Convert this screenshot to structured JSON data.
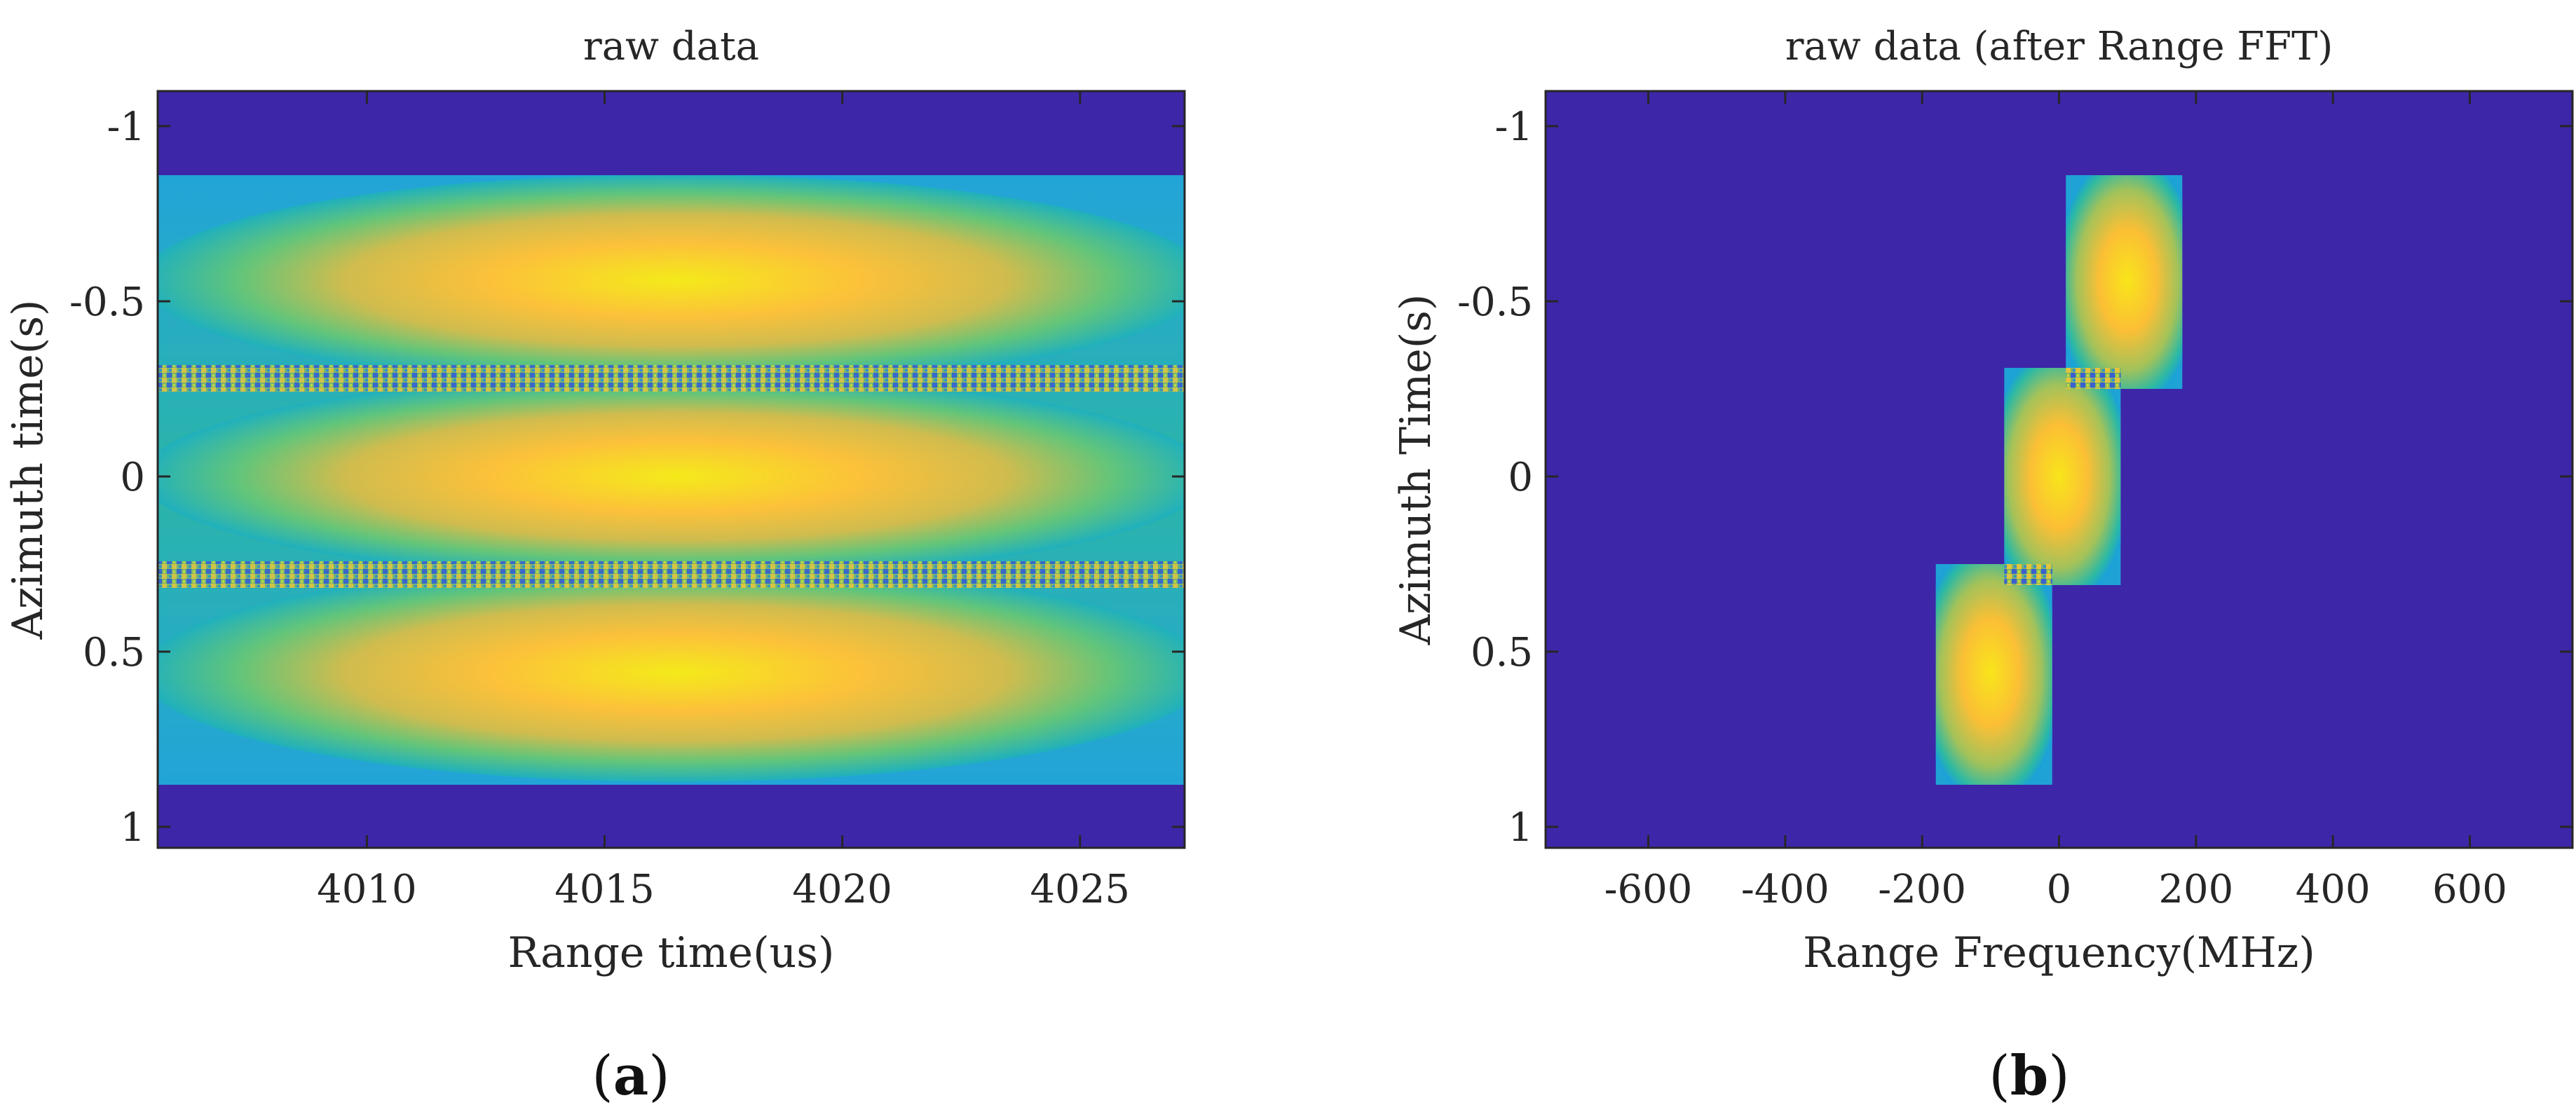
{
  "chart_data": [
    {
      "type": "heatmap",
      "panel": "a",
      "title": "raw data",
      "xlabel": "Range time(us)",
      "ylabel": "Azimuth time(s)",
      "xlim": [
        4005.6,
        4027.2
      ],
      "ylim": [
        1.06,
        -1.1
      ],
      "x_ticks": [
        4010,
        4015,
        4020,
        4025
      ],
      "y_ticks": [
        -1,
        -0.5,
        0,
        0.5,
        1
      ],
      "y_tick_labels": [
        "-1",
        "-0.5",
        "0",
        "0.5",
        "1"
      ],
      "grid": false,
      "colormap": "parula",
      "background_color": "#3e26a8",
      "signal_extent_x": [
        4005.6,
        4027.2
      ],
      "signal_extent_y": [
        -0.86,
        0.88
      ],
      "bands": [
        {
          "center_y": -0.56,
          "y_range": [
            -0.86,
            -0.28
          ],
          "peak_x": 4016.5
        },
        {
          "center_y": 0.0,
          "y_range": [
            -0.28,
            0.28
          ],
          "peak_x": 4016.5
        },
        {
          "center_y": 0.56,
          "y_range": [
            0.28,
            0.88
          ],
          "peak_x": 4016.5
        }
      ],
      "aliasing_rows_y": [
        -0.28,
        0.28
      ]
    },
    {
      "type": "heatmap",
      "panel": "b",
      "title": "raw data (after Range FFT)",
      "xlabel": "Range Frequency(MHz)",
      "ylabel": "Azimuth Time(s)",
      "xlim": [
        -750,
        750
      ],
      "ylim": [
        1.06,
        -1.1
      ],
      "x_ticks": [
        -600,
        -400,
        -200,
        0,
        200,
        400,
        600
      ],
      "x_tick_labels": [
        "-600",
        "-400",
        "-200",
        "0",
        "200",
        "400",
        "600"
      ],
      "y_ticks": [
        -1,
        -0.5,
        0,
        0.5,
        1
      ],
      "y_tick_labels": [
        "-1",
        "-0.5",
        "0",
        "0.5",
        "1"
      ],
      "grid": false,
      "colormap": "parula",
      "background_color": "#3e26a8",
      "blocks": [
        {
          "x_range": [
            10,
            180
          ],
          "y_range": [
            -0.86,
            -0.25
          ],
          "peak": [
            100,
            -0.56
          ]
        },
        {
          "x_range": [
            -80,
            90
          ],
          "y_range": [
            -0.31,
            0.31
          ],
          "peak": [
            0,
            0.0
          ]
        },
        {
          "x_range": [
            -180,
            -10
          ],
          "y_range": [
            0.25,
            0.88
          ],
          "peak": [
            -100,
            0.56
          ]
        }
      ],
      "aliasing_patches": [
        {
          "x_range": [
            10,
            90
          ],
          "y_range": [
            -0.31,
            -0.25
          ]
        },
        {
          "x_range": [
            -80,
            -10
          ],
          "y_range": [
            0.25,
            0.31
          ]
        }
      ]
    }
  ],
  "labels": {
    "a": "a",
    "b": "b"
  }
}
